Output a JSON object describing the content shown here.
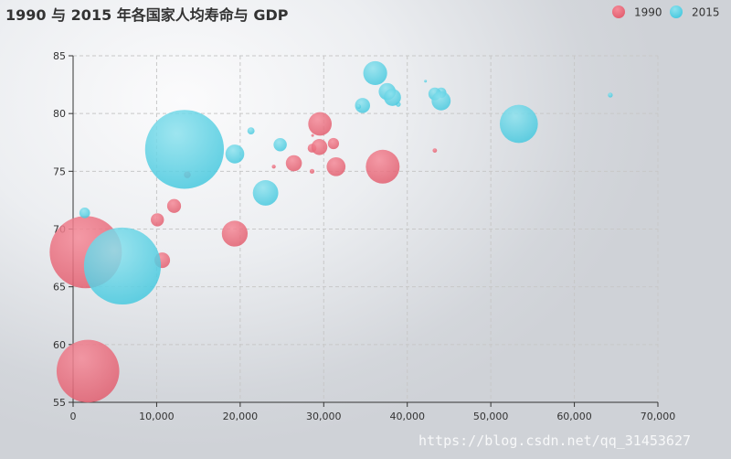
{
  "chart_data": {
    "type": "scatter",
    "title": "1990 与 2015 年各国家人均寿命与 GDP",
    "xlabel": "",
    "ylabel": "",
    "xlim": [
      0,
      70000
    ],
    "ylim": [
      55,
      85
    ],
    "x_ticks": [
      "0",
      "10,000",
      "20,000",
      "30,000",
      "40,000",
      "50,000",
      "60,000",
      "70,000"
    ],
    "y_ticks": [
      "55",
      "60",
      "65",
      "70",
      "75",
      "80",
      "85"
    ],
    "grid": true,
    "legend_position": "top-right",
    "size_encoding": "population",
    "series": [
      {
        "name": "1990",
        "color": "#e05a6b",
        "points": [
          {
            "x": 28604,
            "y": 77,
            "size": 17096869
          },
          {
            "x": 31163,
            "y": 77.4,
            "size": 27662440
          },
          {
            "x": 1516,
            "y": 68,
            "size": 1154605773
          },
          {
            "x": 13670,
            "y": 74.7,
            "size": 10582082
          },
          {
            "x": 28599,
            "y": 75,
            "size": 4986705
          },
          {
            "x": 29476,
            "y": 77.1,
            "size": 56943299
          },
          {
            "x": 31476,
            "y": 75.4,
            "size": 78958237
          },
          {
            "x": 28666,
            "y": 78.1,
            "size": 254830
          },
          {
            "x": 1777,
            "y": 57.7,
            "size": 870601776
          },
          {
            "x": 29550,
            "y": 79.1,
            "size": 122249285
          },
          {
            "x": 12087,
            "y": 72,
            "size": 42972254
          },
          {
            "x": 24021,
            "y": 75.4,
            "size": 3397534
          },
          {
            "x": 43296,
            "y": 76.8,
            "size": 4240375
          },
          {
            "x": 10088,
            "y": 70.8,
            "size": 38195258
          },
          {
            "x": 19349,
            "y": 69.6,
            "size": 147568552
          },
          {
            "x": 10670,
            "y": 67.3,
            "size": 53994605
          },
          {
            "x": 26424,
            "y": 75.7,
            "size": 57110117
          },
          {
            "x": 37062,
            "y": 75.4,
            "size": 252847810
          }
        ]
      },
      {
        "name": "2015",
        "color": "#3fc6dd",
        "points": [
          {
            "x": 44056,
            "y": 81.8,
            "size": 23968973
          },
          {
            "x": 43294,
            "y": 81.7,
            "size": 35939927
          },
          {
            "x": 13334,
            "y": 76.9,
            "size": 1376048943
          },
          {
            "x": 21291,
            "y": 78.5,
            "size": 11389562
          },
          {
            "x": 38923,
            "y": 80.8,
            "size": 5503457
          },
          {
            "x": 37599,
            "y": 81.9,
            "size": 64395345
          },
          {
            "x": 44053,
            "y": 81.1,
            "size": 80688545
          },
          {
            "x": 42182,
            "y": 82.8,
            "size": 329425
          },
          {
            "x": 5903,
            "y": 66.8,
            "size": 1311050527
          },
          {
            "x": 36162,
            "y": 83.5,
            "size": 126573481
          },
          {
            "x": 1390,
            "y": 71.4,
            "size": 25155317
          },
          {
            "x": 34644,
            "y": 80.7,
            "size": 50293439
          },
          {
            "x": 34186,
            "y": 80.6,
            "size": 4528526
          },
          {
            "x": 64304,
            "y": 81.6,
            "size": 5210967
          },
          {
            "x": 24787,
            "y": 77.3,
            "size": 38611794
          },
          {
            "x": 23038,
            "y": 73.13,
            "size": 143456918
          },
          {
            "x": 19360,
            "y": 76.5,
            "size": 78665830
          },
          {
            "x": 38225,
            "y": 81.4,
            "size": 64715810
          },
          {
            "x": 53354,
            "y": 79.1,
            "size": 321773631
          }
        ]
      }
    ]
  },
  "watermark": "https://blog.csdn.net/qq_31453627"
}
